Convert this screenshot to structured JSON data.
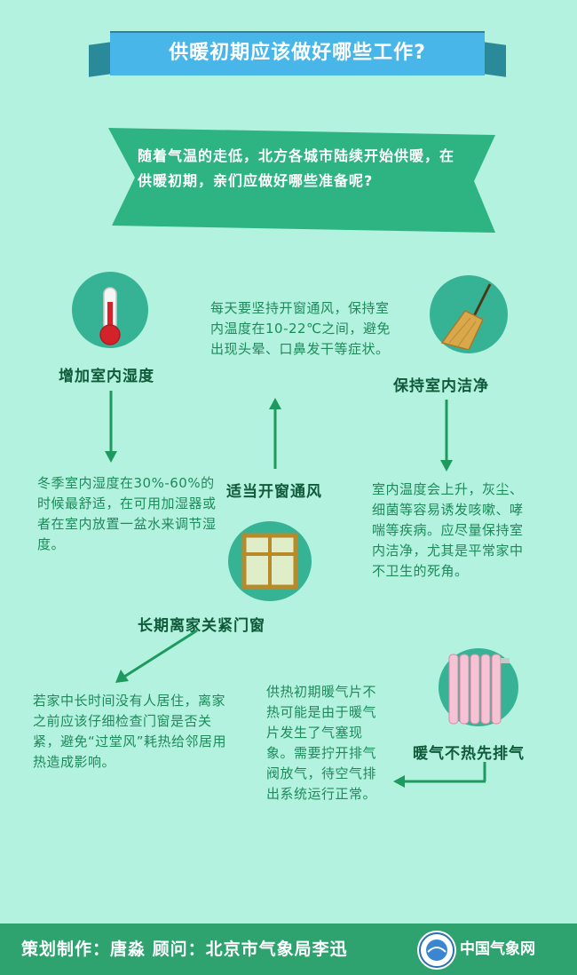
{
  "title": "供暖初期应该做好哪些工作?",
  "intro": "随着气温的走低，北方各城市陆续开始供暖，在供暖初期，亲们应做好哪些准备呢?",
  "sections": {
    "humidity": {
      "label": "增加室内湿度",
      "text": "冬季室内湿度在30%-60%的时候最舒适，在可用加湿器或者在室内放置一盆水来调节湿度。",
      "icon": "thermometer-icon"
    },
    "ventilation": {
      "label": "适当开窗通风",
      "text": "每天要坚持开窗通风，保持室内温度在10-22℃之间，避免出现头晕、口鼻发干等症状。"
    },
    "clean": {
      "label": "保持室内洁净",
      "text": "室内温度会上升，灰尘、细菌等容易诱发咳嗽、哮喘等疾病。应尽量保持室内洁净，尤其是平常家中不卫生的死角。",
      "icon": "broom-icon"
    },
    "windows": {
      "label": "长期离家关紧门窗",
      "text": "若家中长时间没有人居住，离家之前应该仔细检查门窗是否关紧，避免“过堂风”耗热给邻居用热造成影响。",
      "icon": "window-icon"
    },
    "radiator": {
      "label": "暖气不热先排气",
      "text": "供热初期暖气片不热可能是由于暖气片发生了气塞现象。需要拧开排气阀放气，待空气排出系统运行正常。",
      "icon": "radiator-icon"
    }
  },
  "footer": {
    "credits": "策划制作：唐淼  顾问：北京市气象局李迅",
    "brand": "中国气象网"
  },
  "colors": {
    "background": "#b3f2de",
    "ribbon": "#48b6e8",
    "banner": "#2eb383",
    "footer": "#2ea36f",
    "text": "#1d8a5c"
  }
}
